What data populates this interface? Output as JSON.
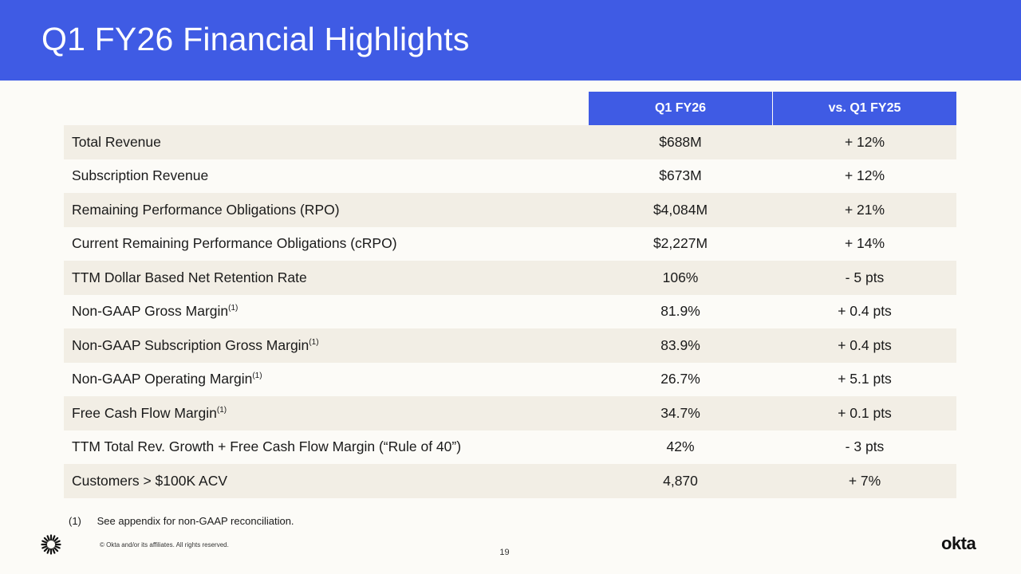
{
  "slide": {
    "title": "Q1 FY26 Financial Highlights",
    "page_number": "19",
    "copyright": "© Okta and/or its affiliates. All rights reserved.",
    "footnote": {
      "marker": "(1)",
      "text": "See appendix for non-GAAP reconciliation."
    },
    "brand_logo_text": "okta",
    "header_color": "#3f5be4"
  },
  "table": {
    "headers": [
      "Q1 FY26",
      "vs. Q1 FY25"
    ],
    "rows": [
      {
        "label": "Total Revenue",
        "sup": "",
        "value": "$688M",
        "change": "+ 12%"
      },
      {
        "label": "Subscription Revenue",
        "sup": "",
        "value": "$673M",
        "change": "+ 12%"
      },
      {
        "label": "Remaining Performance Obligations (RPO)",
        "sup": "",
        "value": "$4,084M",
        "change": "+ 21%"
      },
      {
        "label": "Current Remaining Performance Obligations (cRPO)",
        "sup": "",
        "value": "$2,227M",
        "change": "+ 14%"
      },
      {
        "label": "TTM Dollar Based Net Retention Rate",
        "sup": "",
        "value": "106%",
        "change": "- 5 pts"
      },
      {
        "label": "Non-GAAP Gross Margin",
        "sup": "(1)",
        "value": "81.9%",
        "change": "+ 0.4 pts"
      },
      {
        "label": "Non-GAAP Subscription Gross Margin",
        "sup": "(1)",
        "value": "83.9%",
        "change": "+ 0.4 pts"
      },
      {
        "label": "Non-GAAP Operating Margin",
        "sup": "(1)",
        "value": "26.7%",
        "change": "+ 5.1 pts"
      },
      {
        "label": "Free Cash Flow Margin",
        "sup": "(1)",
        "value": "34.7%",
        "change": "+ 0.1 pts"
      },
      {
        "label": "TTM Total Rev. Growth + Free Cash Flow Margin (“Rule of 40”)",
        "sup": "",
        "value": "42%",
        "change": "- 3 pts"
      },
      {
        "label": "Customers > $100K ACV",
        "sup": "",
        "value": "4,870",
        "change": "+ 7%"
      }
    ]
  }
}
